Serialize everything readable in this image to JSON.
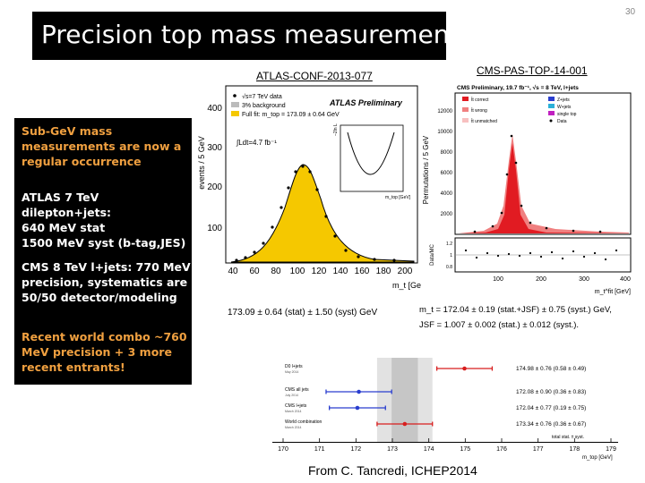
{
  "slide": {
    "title": "Precision top mass measurement",
    "page_number": "30"
  },
  "bullets": [
    {
      "lines": [
        "Sub-GeV mass",
        "measurements are now a",
        "regular occurrence"
      ]
    },
    {
      "lines": [
        "ATLAS 7 TeV dilepton+jets:",
        "640 MeV stat",
        "1500 MeV syst (b-tag,JES)"
      ]
    },
    {
      "lines": [
        "CMS 8 TeV l+jets:  770 MeV",
        "precision, systematics are",
        "50/50 detector/modeling"
      ]
    },
    {
      "lines": [
        "Recent world combo ~760",
        "MeV precision + 3 more",
        "recent entrants!"
      ]
    }
  ],
  "colors": {
    "bullet_orange": "#f0a040",
    "bullet_white": "#ffffff",
    "atlas_fill": "#f5c800",
    "cms_red": "#e11b22",
    "cms_pink": "#f08080",
    "combo_red": "#d81e1e",
    "combo_blue": "#2a3ecf"
  },
  "refs": {
    "atlas": "ATLAS-CONF-2013-077",
    "cms": "CMS-PAS-TOP-14-001"
  },
  "atlas_plot": {
    "ylabel": "events / 5 GeV",
    "xlabel": "m_t [GeV]",
    "legend_title": "ATLAS Preliminary",
    "legend": [
      "√s=7 TeV data",
      "3% background",
      "Full fit: m_top = 173.09 ± 0.64 GeV"
    ],
    "lumi": "∫Ldt=4.7 fb⁻¹",
    "inset_ylabel": "−2ln L",
    "inset_xlabel": "m_top [GeV]",
    "yticks": [
      "100",
      "200",
      "300",
      "400"
    ],
    "xticks": [
      "40",
      "60",
      "80",
      "100",
      "120",
      "140",
      "160",
      "180",
      "200"
    ],
    "caption": "173.09 ± 0.64 (stat) ± 1.50 (syst) GeV"
  },
  "cms_plot": {
    "header": "CMS Preliminary, 19.7 fb⁻¹, √s = 8 TeV, l+jets",
    "ylabel": "Permutations / 5 GeV",
    "ratio_ylabel": "Data/MC",
    "xlabel": "m_t^fit [GeV]",
    "legend": [
      "t̄t correct",
      "t̄t wrong",
      "t̄t unmatched",
      "Z+jets",
      "W+jets",
      "single top",
      "Data"
    ],
    "yticks": [
      "2000",
      "4000",
      "6000",
      "8000",
      "10000",
      "12000"
    ],
    "xticks": [
      "100",
      "200",
      "300",
      "400"
    ],
    "ratio_yticks": [
      "0.8",
      "1",
      "1.2"
    ],
    "result_line1": "m_t = 172.04 ± 0.19 (stat.+JSF) ± 0.75 (syst.) GeV,",
    "result_line2": "JSF = 1.007 ± 0.002 (stat.) ± 0.012 (syst.)."
  },
  "combo_chart": {
    "xlabel": "m_top [GeV]",
    "legend": "total  stat. ± syst.",
    "xticks": [
      "170",
      "171",
      "172",
      "173",
      "174",
      "175",
      "176",
      "177",
      "178",
      "179"
    ],
    "rows": [
      {
        "label": "D0 l+jets",
        "date": "May 2014",
        "value_text": "174.98 ± 0.76 (0.58 ± 0.49)",
        "central": 174.98,
        "total": 0.76,
        "stat": 0.58,
        "color": "#d81e1e"
      },
      {
        "label": "CMS all jets",
        "date": "July 2014",
        "value_text": "172.08 ± 0.90 (0.36 ± 0.83)",
        "central": 172.08,
        "total": 0.9,
        "stat": 0.36,
        "color": "#2a3ecf"
      },
      {
        "label": "CMS l+jets",
        "date": "March 2014",
        "value_text": "172.04 ± 0.77 (0.19 ± 0.75)",
        "central": 172.04,
        "total": 0.77,
        "stat": 0.19,
        "color": "#2a3ecf"
      },
      {
        "label": "World combination",
        "date": "March 2014",
        "value_text": "173.34 ± 0.76 (0.36 ± 0.67)",
        "central": 173.34,
        "total": 0.76,
        "stat": 0.36,
        "color": "#d81e1e"
      }
    ],
    "band_center": 173.34,
    "band_total": 0.76,
    "band_stat": 0.36
  },
  "credit": "From C. Tancredi, ICHEP2014"
}
